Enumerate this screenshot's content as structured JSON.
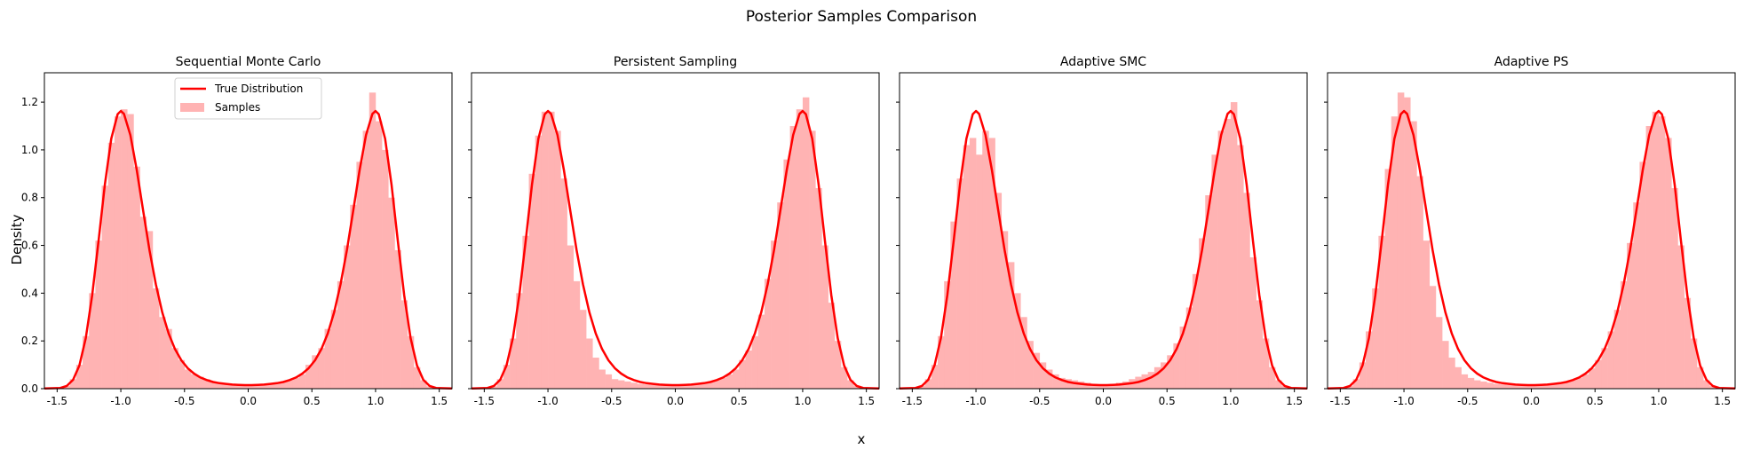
{
  "chart_data": {
    "type": "bar",
    "title": "Posterior Samples Comparison",
    "xlabel": "x",
    "ylabel": "Density",
    "xlim": [
      -1.6,
      1.6
    ],
    "ylim": [
      0,
      1.323
    ],
    "xticks": [
      "-1.5",
      "-1.0",
      "-0.5",
      "0.0",
      "0.5",
      "1.0",
      "1.5"
    ],
    "xtick_values": [
      -1.5,
      -1.0,
      -0.5,
      0.0,
      0.5,
      1.0,
      1.5
    ],
    "yticks": [
      "0.0",
      "0.2",
      "0.4",
      "0.6",
      "0.8",
      "1.0",
      "1.2"
    ],
    "ytick_values": [
      0,
      0.2,
      0.4,
      0.6,
      0.8,
      1.0,
      1.2
    ],
    "legend": {
      "placement": "upper-center of first panel",
      "entries": [
        "True Distribution",
        "Samples"
      ]
    },
    "colors": {
      "curve": "#ff0000",
      "bars": "#ffb3b3"
    },
    "bins": {
      "start": -1.5,
      "width": 0.05,
      "count": 60
    },
    "true_curve": {
      "x": [
        -1.6,
        -1.475,
        -1.425,
        -1.375,
        -1.325,
        -1.275,
        -1.225,
        -1.175,
        -1.125,
        -1.075,
        -1.025,
        -1.0,
        -0.975,
        -0.925,
        -0.875,
        -0.825,
        -0.775,
        -0.725,
        -0.675,
        -0.625,
        -0.575,
        -0.525,
        -0.475,
        -0.425,
        -0.375,
        -0.325,
        -0.275,
        -0.225,
        -0.175,
        -0.125,
        -0.075,
        -0.025,
        0.0,
        0.025,
        0.075,
        0.125,
        0.175,
        0.225,
        0.275,
        0.325,
        0.375,
        0.425,
        0.475,
        0.525,
        0.575,
        0.625,
        0.675,
        0.725,
        0.775,
        0.825,
        0.875,
        0.925,
        0.975,
        1.0,
        1.025,
        1.075,
        1.125,
        1.175,
        1.225,
        1.275,
        1.325,
        1.375,
        1.425,
        1.475,
        1.6
      ],
      "y": [
        0.001,
        0.003,
        0.011,
        0.037,
        0.097,
        0.212,
        0.391,
        0.619,
        0.855,
        1.047,
        1.15,
        1.163,
        1.151,
        1.062,
        0.916,
        0.746,
        0.581,
        0.437,
        0.32,
        0.231,
        0.166,
        0.119,
        0.086,
        0.063,
        0.047,
        0.036,
        0.028,
        0.023,
        0.02,
        0.017,
        0.016,
        0.015,
        0.015,
        0.015,
        0.016,
        0.017,
        0.02,
        0.023,
        0.028,
        0.036,
        0.047,
        0.063,
        0.086,
        0.119,
        0.166,
        0.231,
        0.32,
        0.437,
        0.581,
        0.746,
        0.916,
        1.062,
        1.151,
        1.163,
        1.15,
        1.047,
        0.855,
        0.619,
        0.391,
        0.212,
        0.097,
        0.037,
        0.011,
        0.003,
        0.001
      ]
    },
    "panels": [
      {
        "title": "Sequential Monte Carlo",
        "values": [
          0.003,
          0.012,
          0.04,
          0.1,
          0.22,
          0.4,
          0.62,
          0.85,
          1.03,
          1.14,
          1.17,
          1.15,
          0.93,
          0.72,
          0.66,
          0.42,
          0.3,
          0.25,
          0.17,
          0.12,
          0.08,
          0.06,
          0.05,
          0.04,
          0.03,
          0.025,
          0.02,
          0.018,
          0.016,
          0.015,
          0.014,
          0.016,
          0.018,
          0.02,
          0.022,
          0.03,
          0.035,
          0.045,
          0.06,
          0.1,
          0.14,
          0.17,
          0.25,
          0.33,
          0.45,
          0.6,
          0.77,
          0.95,
          1.08,
          1.24,
          1.12,
          1.0,
          0.8,
          0.58,
          0.37,
          0.22,
          0.09,
          0.035,
          0.01,
          0.003
        ]
      },
      {
        "title": "Persistent Sampling",
        "values": [
          0.003,
          0.01,
          0.04,
          0.1,
          0.21,
          0.4,
          0.64,
          0.9,
          1.06,
          1.16,
          1.16,
          1.08,
          0.88,
          0.6,
          0.45,
          0.33,
          0.21,
          0.13,
          0.08,
          0.06,
          0.04,
          0.035,
          0.03,
          0.025,
          0.02,
          0.018,
          0.016,
          0.015,
          0.014,
          0.014,
          0.014,
          0.015,
          0.016,
          0.018,
          0.022,
          0.027,
          0.035,
          0.045,
          0.06,
          0.08,
          0.12,
          0.16,
          0.22,
          0.31,
          0.46,
          0.62,
          0.78,
          0.96,
          1.1,
          1.17,
          1.22,
          1.08,
          0.84,
          0.6,
          0.36,
          0.2,
          0.09,
          0.035,
          0.012,
          0.003
        ]
      },
      {
        "title": "Adaptive SMC",
        "values": [
          0.003,
          0.012,
          0.04,
          0.1,
          0.22,
          0.45,
          0.7,
          0.88,
          1.02,
          1.05,
          0.98,
          1.08,
          1.05,
          0.82,
          0.66,
          0.53,
          0.4,
          0.3,
          0.2,
          0.15,
          0.11,
          0.08,
          0.06,
          0.045,
          0.04,
          0.035,
          0.03,
          0.025,
          0.02,
          0.018,
          0.018,
          0.02,
          0.025,
          0.03,
          0.04,
          0.05,
          0.06,
          0.07,
          0.09,
          0.11,
          0.14,
          0.19,
          0.26,
          0.34,
          0.48,
          0.63,
          0.81,
          0.98,
          1.08,
          1.13,
          1.2,
          1.02,
          0.82,
          0.55,
          0.37,
          0.21,
          0.09,
          0.035,
          0.012,
          0.003
        ]
      },
      {
        "title": "Adaptive PS",
        "values": [
          0.003,
          0.012,
          0.04,
          0.11,
          0.24,
          0.42,
          0.64,
          0.92,
          1.14,
          1.24,
          1.22,
          1.12,
          0.89,
          0.62,
          0.43,
          0.3,
          0.2,
          0.13,
          0.09,
          0.06,
          0.045,
          0.035,
          0.03,
          0.025,
          0.02,
          0.018,
          0.016,
          0.015,
          0.014,
          0.014,
          0.014,
          0.015,
          0.016,
          0.018,
          0.022,
          0.028,
          0.035,
          0.045,
          0.06,
          0.085,
          0.12,
          0.17,
          0.24,
          0.33,
          0.45,
          0.61,
          0.78,
          0.95,
          1.1,
          1.16,
          1.14,
          1.05,
          0.84,
          0.6,
          0.38,
          0.21,
          0.09,
          0.035,
          0.011,
          0.003
        ]
      }
    ]
  }
}
